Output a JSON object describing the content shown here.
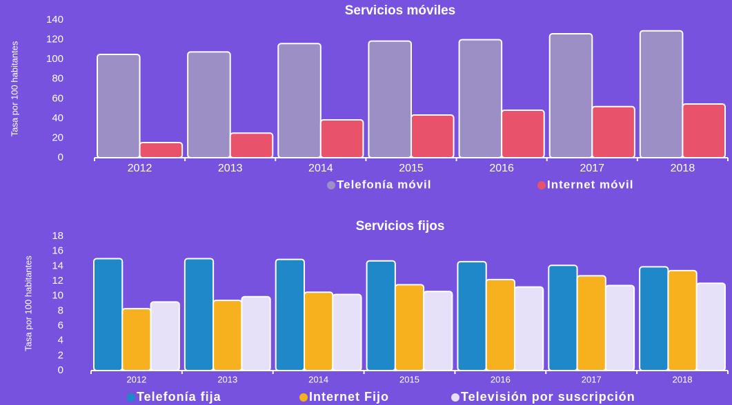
{
  "chart_data": [
    {
      "type": "bar",
      "title": "Servicios móviles",
      "ylabel": "Tasa por 100 habitantes",
      "categories": [
        "2012",
        "2013",
        "2014",
        "2015",
        "2016",
        "2017",
        "2018"
      ],
      "series": [
        {
          "name": "Telefonía móvil",
          "color": "#9b8fc6",
          "values": [
            105,
            107.5,
            116,
            118.6,
            120,
            126,
            129
          ]
        },
        {
          "name": "Internet móvil",
          "color": "#e8526b",
          "values": [
            15.4,
            25,
            38.5,
            43.4,
            48.3,
            52,
            54.6
          ]
        }
      ],
      "ylim": [
        0,
        140
      ],
      "yticks": [
        0,
        20,
        40,
        60,
        80,
        100,
        120,
        140
      ],
      "grid": false,
      "legend": "bottom"
    },
    {
      "type": "bar",
      "title": "Servicios fijos",
      "ylabel": "Tasa por 100 habitantes",
      "categories": [
        "2012",
        "2013",
        "2014",
        "2015",
        "2016",
        "2017",
        "2018"
      ],
      "series": [
        {
          "name": "Telefonía fija",
          "color": "#1e88c8",
          "values": [
            15.0,
            15.0,
            14.9,
            14.7,
            14.6,
            14.1,
            13.9
          ]
        },
        {
          "name": "Internet Fijo",
          "color": "#f7b11e",
          "values": [
            8.3,
            9.4,
            10.5,
            11.5,
            12.2,
            12.7,
            13.4
          ]
        },
        {
          "name": "Televisión por suscripción",
          "color": "#e6e0f8",
          "values": [
            9.2,
            9.9,
            10.2,
            10.6,
            11.2,
            11.4,
            11.7
          ]
        }
      ],
      "ylim": [
        0,
        18
      ],
      "yticks": [
        0,
        2,
        4,
        6,
        8,
        10,
        12,
        14,
        16,
        18
      ],
      "grid": false,
      "legend": "bottom"
    }
  ]
}
